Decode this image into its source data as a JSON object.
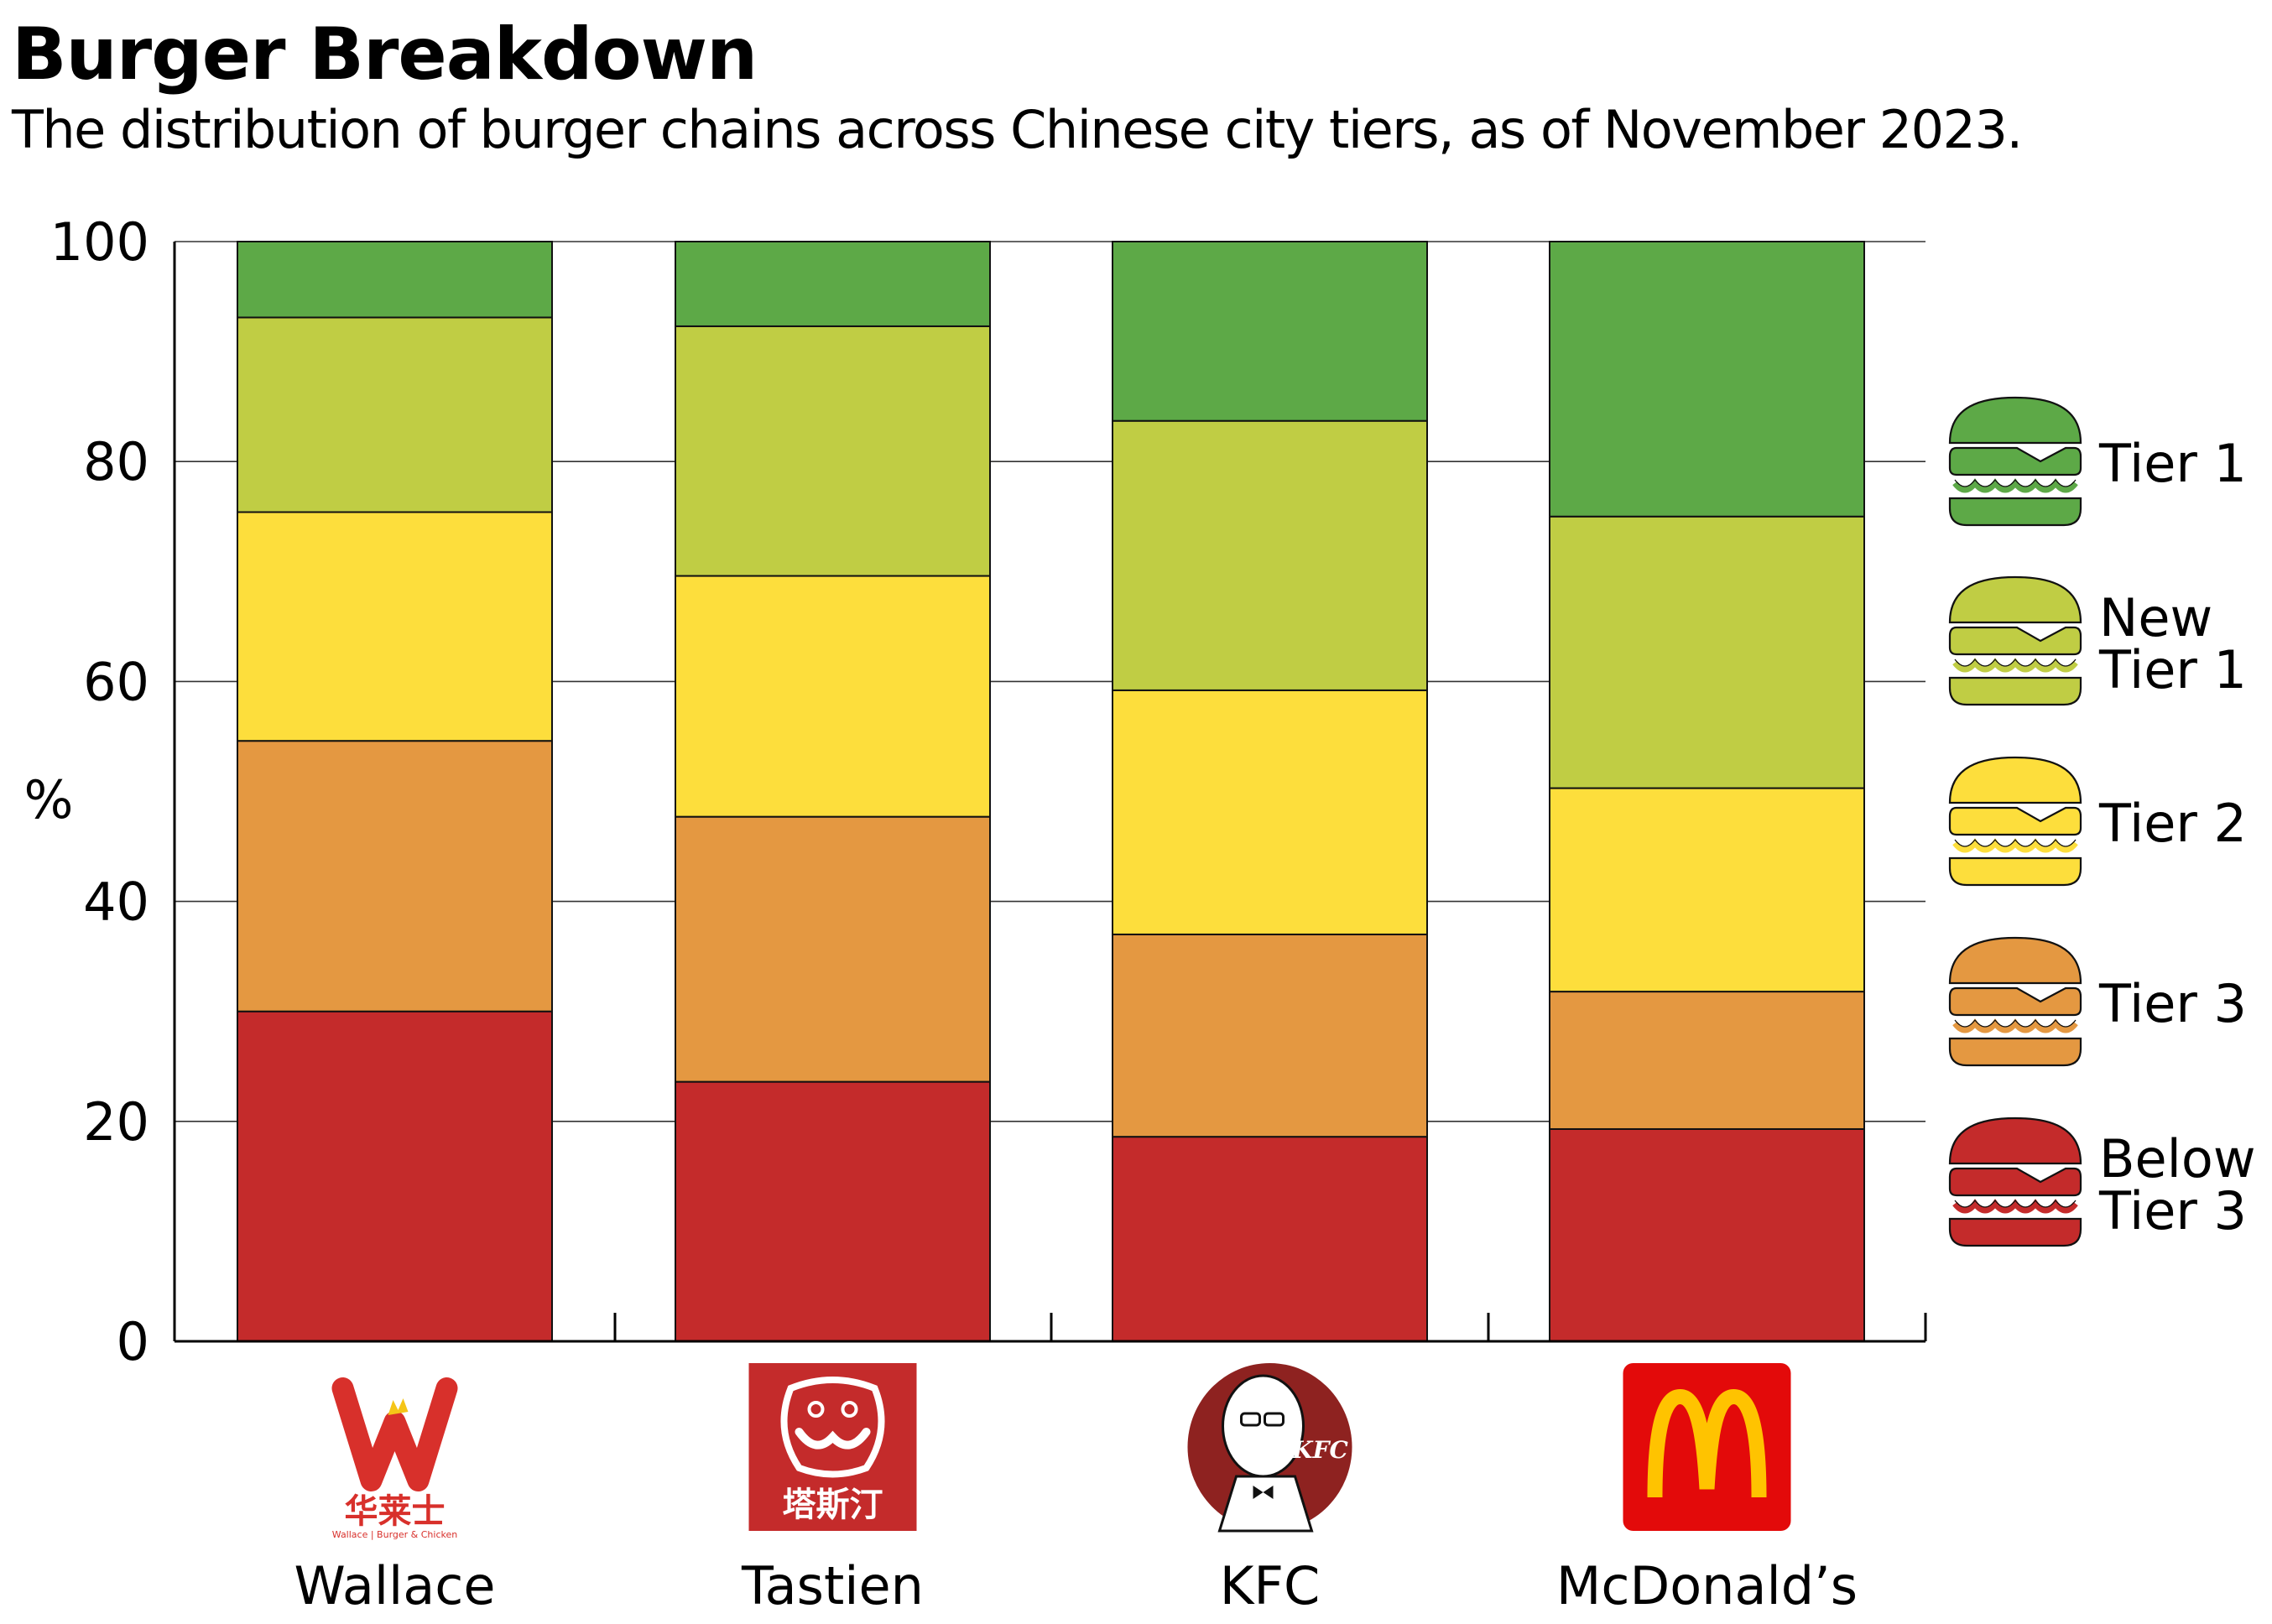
{
  "chart_data": {
    "type": "bar",
    "stacked": true,
    "title": "Burger Breakdown",
    "subtitle": "The distribution of burger chains across Chinese city tiers, as of November 2023.",
    "xlabel": "",
    "ylabel": "%",
    "ylim": [
      0,
      100
    ],
    "yticks": [
      0,
      20,
      40,
      60,
      80,
      100
    ],
    "grid": true,
    "legend_position": "right",
    "categories": [
      "Wallace",
      "Tastien",
      "KFC",
      "McDonald’s"
    ],
    "category_logos": [
      "wallace-logo",
      "tastien-logo",
      "kfc-logo",
      "mcdonalds-logo"
    ],
    "logo_text": {
      "wallace": "华莱士",
      "wallace_tagline": "Wallace | Burger & Chicken",
      "tastien": "塔斯汀",
      "kfc": "KFC",
      "mcdonalds": "M"
    },
    "series": [
      {
        "name": "Below Tier 3",
        "label_lines": [
          "Below",
          "Tier 3"
        ],
        "color": "#C42B2B",
        "values": [
          30.0,
          23.6,
          18.6,
          19.3
        ]
      },
      {
        "name": "Tier 3",
        "label_lines": [
          "Tier 3"
        ],
        "color": "#E49841",
        "values": [
          24.6,
          24.1,
          18.4,
          12.5
        ]
      },
      {
        "name": "Tier 2",
        "label_lines": [
          "Tier 2"
        ],
        "color": "#FDDE3C",
        "values": [
          20.8,
          21.9,
          22.2,
          18.5
        ]
      },
      {
        "name": "New Tier 1",
        "label_lines": [
          "New",
          "Tier 1"
        ],
        "color": "#C0CD44",
        "values": [
          17.7,
          22.7,
          24.5,
          24.7
        ]
      },
      {
        "name": "Tier 1",
        "label_lines": [
          "Tier 1"
        ],
        "color": "#5DA947",
        "values": [
          6.9,
          7.7,
          16.3,
          25.0
        ]
      }
    ]
  }
}
